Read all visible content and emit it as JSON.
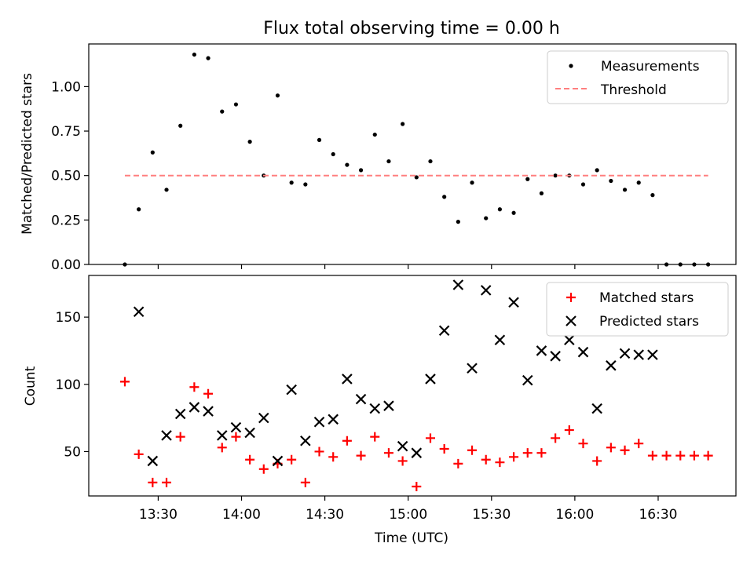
{
  "chart_data": [
    {
      "type": "scatter",
      "title": "Flux total observing time = 0.00 h",
      "xlabel": "",
      "ylabel": "Matched/Predicted stars",
      "ylim": [
        0,
        1.24
      ],
      "yticks": [
        0.0,
        0.25,
        0.5,
        0.75,
        1.0
      ],
      "ytick_labels": [
        "0.00",
        "0.25",
        "0.50",
        "0.75",
        "1.00"
      ],
      "xticks_shown_labels": false,
      "legend_position": "top-right",
      "series": [
        {
          "name": "Measurements",
          "kind": "scatter",
          "marker": "dot",
          "color": "#000000",
          "x": [
            "13:18",
            "13:23",
            "13:28",
            "13:33",
            "13:38",
            "13:43",
            "13:48",
            "13:53",
            "13:58",
            "14:03",
            "14:08",
            "14:13",
            "14:18",
            "14:23",
            "14:28",
            "14:33",
            "14:38",
            "14:43",
            "14:48",
            "14:53",
            "14:58",
            "15:03",
            "15:08",
            "15:13",
            "15:18",
            "15:23",
            "15:28",
            "15:33",
            "15:38",
            "15:43",
            "15:48",
            "15:53",
            "15:58",
            "16:03",
            "16:08",
            "16:13",
            "16:18",
            "16:23",
            "16:28",
            "16:33",
            "16:38",
            "16:43",
            "16:48"
          ],
          "y": [
            0.0,
            0.31,
            0.63,
            0.42,
            0.78,
            1.18,
            1.16,
            0.86,
            0.9,
            0.69,
            0.5,
            0.95,
            0.46,
            0.45,
            0.7,
            0.62,
            0.56,
            0.53,
            0.73,
            0.58,
            0.79,
            0.49,
            0.58,
            0.38,
            0.24,
            0.46,
            0.26,
            0.31,
            0.29,
            0.48,
            0.4,
            0.5,
            0.5,
            0.45,
            0.53,
            0.47,
            0.42,
            0.46,
            0.39,
            0.0,
            0.0,
            0.0,
            0.0
          ]
        },
        {
          "name": "Threshold",
          "kind": "line",
          "style": "dashed",
          "color": "#ff7f7f",
          "x": [
            "13:18",
            "16:48"
          ],
          "y": [
            0.5,
            0.5
          ]
        }
      ]
    },
    {
      "type": "scatter",
      "xlabel": "Time (UTC)",
      "ylabel": "Count",
      "ylim": [
        17,
        181
      ],
      "yticks": [
        50,
        100,
        150
      ],
      "ytick_labels": [
        "50",
        "100",
        "150"
      ],
      "xticks": [
        "13:30",
        "14:00",
        "14:30",
        "15:00",
        "15:30",
        "16:00",
        "16:30"
      ],
      "xlim": [
        "13:05",
        "16:58"
      ],
      "legend_position": "top-right",
      "series": [
        {
          "name": "Matched stars",
          "kind": "scatter",
          "marker": "plus",
          "color": "#ff0000",
          "x": [
            "13:18",
            "13:23",
            "13:28",
            "13:33",
            "13:38",
            "13:43",
            "13:48",
            "13:53",
            "13:58",
            "14:03",
            "14:08",
            "14:13",
            "14:18",
            "14:23",
            "14:28",
            "14:33",
            "14:38",
            "14:43",
            "14:48",
            "14:53",
            "14:58",
            "15:03",
            "15:08",
            "15:13",
            "15:18",
            "15:23",
            "15:28",
            "15:33",
            "15:38",
            "15:43",
            "15:48",
            "15:53",
            "15:58",
            "16:03",
            "16:08",
            "16:13",
            "16:18",
            "16:23",
            "16:28",
            "16:33",
            "16:38",
            "16:43",
            "16:48"
          ],
          "y": [
            102,
            48,
            27,
            27,
            61,
            98,
            93,
            53,
            61,
            44,
            37,
            41,
            44,
            27,
            50,
            46,
            58,
            47,
            61,
            49,
            43,
            24,
            60,
            52,
            41,
            51,
            44,
            42,
            46,
            49,
            49,
            60,
            66,
            56,
            43,
            53,
            51,
            56,
            47,
            47,
            47,
            47,
            47
          ]
        },
        {
          "name": "Predicted stars",
          "kind": "scatter",
          "marker": "x",
          "color": "#000000",
          "x": [
            "13:23",
            "13:28",
            "13:33",
            "13:38",
            "13:43",
            "13:48",
            "13:53",
            "13:58",
            "14:03",
            "14:08",
            "14:13",
            "14:18",
            "14:23",
            "14:28",
            "14:33",
            "14:38",
            "14:43",
            "14:48",
            "14:53",
            "14:58",
            "15:03",
            "15:08",
            "15:13",
            "15:18",
            "15:23",
            "15:28",
            "15:33",
            "15:38",
            "15:43",
            "15:48",
            "15:53",
            "15:58",
            "16:03",
            "16:08",
            "16:13",
            "16:18",
            "16:23",
            "16:28"
          ],
          "y": [
            154,
            43,
            62,
            78,
            83,
            80,
            62,
            68,
            64,
            75,
            43,
            96,
            58,
            72,
            74,
            104,
            89,
            82,
            84,
            54,
            49,
            104,
            140,
            174,
            112,
            170,
            133,
            161,
            103,
            125,
            121,
            133,
            124,
            82,
            114,
            123,
            122,
            122
          ]
        }
      ]
    }
  ]
}
